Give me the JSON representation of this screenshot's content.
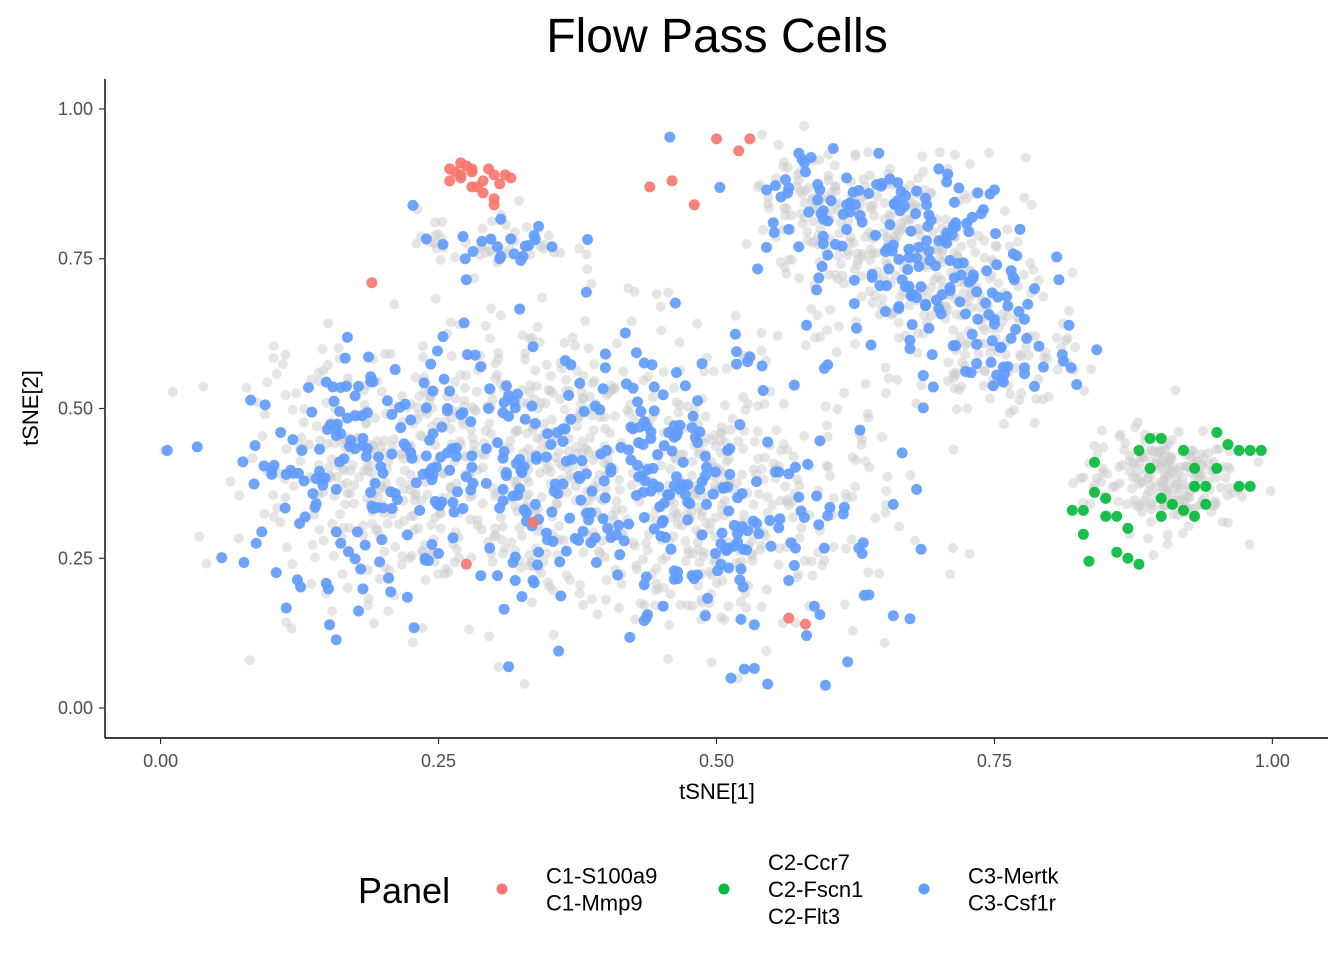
{
  "chart_data": {
    "type": "scatter",
    "title": "Flow Pass Cells",
    "xlabel": "tSNE[1]",
    "ylabel": "tSNE[2]",
    "xlim": [
      -0.05,
      1.05
    ],
    "ylim": [
      -0.05,
      1.05
    ],
    "x_ticks": [
      0.0,
      0.25,
      0.5,
      0.75,
      1.0
    ],
    "x_tick_labels": [
      "0.00",
      "0.25",
      "0.50",
      "0.75",
      "1.00"
    ],
    "y_ticks": [
      0.0,
      0.25,
      0.5,
      0.75,
      1.0
    ],
    "y_tick_labels": [
      "0.00",
      "0.25",
      "0.50",
      "0.75",
      "1.00"
    ],
    "grid": false,
    "legend": {
      "title": "Panel",
      "position": "bottom",
      "entries": [
        {
          "lines": [
            "C1-S100a9",
            "C1-Mmp9"
          ],
          "color": "#F8766D"
        },
        {
          "lines": [
            "C2-Ccr7",
            "C2-Fscn1",
            "C2-Flt3"
          ],
          "color": "#00BA38"
        },
        {
          "lines": [
            "C3-Mertk",
            "C3-Csf1r"
          ],
          "color": "#619CFF"
        }
      ]
    },
    "background_color": "#cccccc",
    "series": [
      {
        "name": "C1-S100a9 C1-Mmp9",
        "color": "#F8766D",
        "points": [
          [
            0.26,
            0.9
          ],
          [
            0.27,
            0.89
          ],
          [
            0.28,
            0.9
          ],
          [
            0.29,
            0.88
          ],
          [
            0.3,
            0.89
          ],
          [
            0.31,
            0.89
          ],
          [
            0.27,
            0.91
          ],
          [
            0.28,
            0.87
          ],
          [
            0.29,
            0.86
          ],
          [
            0.3,
            0.85
          ],
          [
            0.26,
            0.88
          ],
          [
            0.3,
            0.84
          ],
          [
            0.28,
            0.895
          ],
          [
            0.275,
            0.905
          ],
          [
            0.295,
            0.9
          ],
          [
            0.305,
            0.875
          ],
          [
            0.315,
            0.885
          ],
          [
            0.285,
            0.87
          ],
          [
            0.265,
            0.895
          ],
          [
            0.27,
            0.885
          ],
          [
            0.19,
            0.71
          ],
          [
            0.44,
            0.87
          ],
          [
            0.46,
            0.88
          ],
          [
            0.48,
            0.84
          ],
          [
            0.5,
            0.95
          ],
          [
            0.52,
            0.93
          ],
          [
            0.53,
            0.95
          ],
          [
            0.335,
            0.31
          ],
          [
            0.275,
            0.24
          ],
          [
            0.565,
            0.15
          ],
          [
            0.58,
            0.14
          ]
        ]
      },
      {
        "name": "C2-Ccr7 C2-Fscn1 C2-Flt3",
        "color": "#00BA38",
        "points": [
          [
            0.82,
            0.33
          ],
          [
            0.83,
            0.33
          ],
          [
            0.83,
            0.29
          ],
          [
            0.84,
            0.36
          ],
          [
            0.84,
            0.41
          ],
          [
            0.85,
            0.35
          ],
          [
            0.85,
            0.32
          ],
          [
            0.86,
            0.26
          ],
          [
            0.86,
            0.32
          ],
          [
            0.87,
            0.3
          ],
          [
            0.87,
            0.25
          ],
          [
            0.88,
            0.24
          ],
          [
            0.88,
            0.43
          ],
          [
            0.89,
            0.45
          ],
          [
            0.89,
            0.4
          ],
          [
            0.9,
            0.45
          ],
          [
            0.9,
            0.35
          ],
          [
            0.91,
            0.34
          ],
          [
            0.92,
            0.43
          ],
          [
            0.92,
            0.33
          ],
          [
            0.93,
            0.4
          ],
          [
            0.93,
            0.37
          ],
          [
            0.93,
            0.32
          ],
          [
            0.94,
            0.37
          ],
          [
            0.95,
            0.46
          ],
          [
            0.95,
            0.4
          ],
          [
            0.96,
            0.44
          ],
          [
            0.97,
            0.43
          ],
          [
            0.98,
            0.43
          ],
          [
            0.99,
            0.43
          ],
          [
            0.97,
            0.37
          ],
          [
            0.98,
            0.37
          ],
          [
            0.835,
            0.245
          ],
          [
            0.9,
            0.32
          ],
          [
            0.94,
            0.34
          ]
        ]
      },
      {
        "name": "C3-Mertk C3-Csf1r",
        "color": "#619CFF",
        "points": []
      }
    ]
  }
}
